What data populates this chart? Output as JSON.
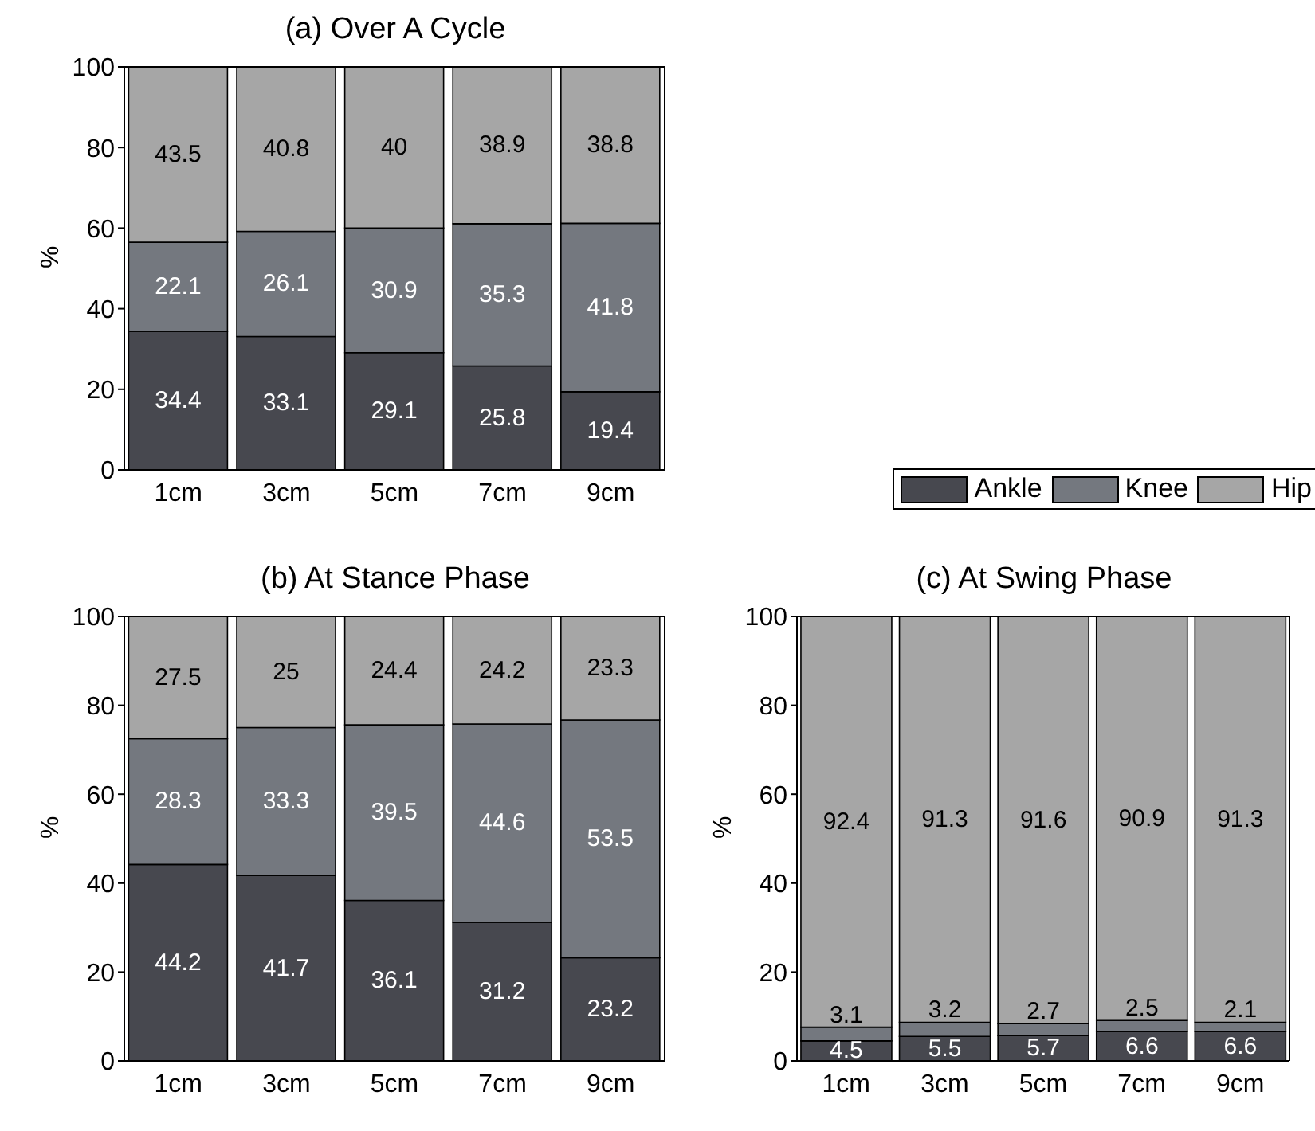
{
  "chart_data": [
    {
      "type": "bar",
      "title": "(a) Over A Cycle",
      "ylabel": "%",
      "categories": [
        "1cm",
        "3cm",
        "5cm",
        "7cm",
        "9cm"
      ],
      "stacked": true,
      "data_labels": true,
      "ylim": [
        0,
        100
      ],
      "yticks": [
        0,
        20,
        40,
        60,
        80,
        100
      ],
      "legend": "right",
      "series": [
        {
          "name": "Ankle",
          "color": "#47484f",
          "values": [
            34.4,
            33.1,
            29.1,
            25.8,
            19.4
          ]
        },
        {
          "name": "Knee",
          "color": "#74787f",
          "values": [
            22.1,
            26.1,
            30.9,
            35.3,
            41.8
          ]
        },
        {
          "name": "Hip",
          "color": "#a6a6a6",
          "values": [
            43.5,
            40.8,
            40,
            38.9,
            38.8
          ]
        }
      ]
    },
    {
      "type": "bar",
      "title": "(b) At Stance Phase",
      "ylabel": "%",
      "categories": [
        "1cm",
        "3cm",
        "5cm",
        "7cm",
        "9cm"
      ],
      "stacked": true,
      "data_labels": true,
      "ylim": [
        0,
        100
      ],
      "yticks": [
        0,
        20,
        40,
        60,
        80,
        100
      ],
      "series": [
        {
          "color": "#47484f",
          "values": [
            44.2,
            41.7,
            36.1,
            31.2,
            23.2
          ]
        },
        {
          "color": "#74787f",
          "values": [
            28.3,
            33.3,
            39.5,
            44.6,
            53.5
          ]
        },
        {
          "color": "#a6a6a6",
          "values": [
            27.5,
            25,
            24.4,
            24.2,
            23.3
          ]
        }
      ]
    },
    {
      "type": "bar",
      "title": "(c) At Swing Phase",
      "ylabel": "%",
      "categories": [
        "1cm",
        "3cm",
        "5cm",
        "7cm",
        "9cm"
      ],
      "stacked": true,
      "data_labels": true,
      "ylim": [
        0,
        100
      ],
      "yticks": [
        0,
        20,
        40,
        60,
        80,
        100
      ],
      "series": [
        {
          "color": "#47484f",
          "values": [
            4.5,
            5.5,
            5.7,
            6.6,
            6.6
          ]
        },
        {
          "color": "#74787f",
          "values": [
            3.1,
            3.2,
            2.7,
            2.5,
            2.1
          ]
        },
        {
          "color": "#a6a6a6",
          "values": [
            92.4,
            91.3,
            91.6,
            90.9,
            91.3
          ]
        }
      ]
    }
  ]
}
